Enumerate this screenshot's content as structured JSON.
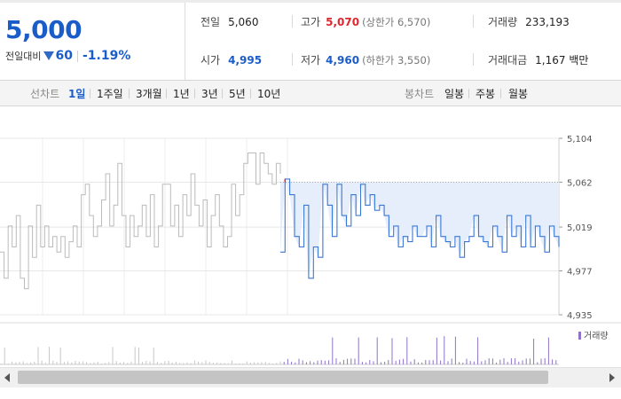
{
  "quote": {
    "price": "5,000",
    "change_label": "전일대비",
    "change_value": "60",
    "change_pct": "-1.19%",
    "colors": {
      "down": "#1a5dc9",
      "up": "#e0262d"
    }
  },
  "stats": {
    "prev_close": {
      "label": "전일",
      "value": "5,060"
    },
    "open": {
      "label": "시가",
      "value": "4,995"
    },
    "high": {
      "label": "고가",
      "value": "5,070",
      "sub": "(상한가 6,570)"
    },
    "low": {
      "label": "저가",
      "value": "4,960",
      "sub": "(하한가 3,550)"
    },
    "volume": {
      "label": "거래량",
      "value": "233,193"
    },
    "amount": {
      "label": "거래대금",
      "value": "1,167 백만"
    }
  },
  "toolbar": {
    "line_label": "선차트",
    "line_periods": [
      "1일",
      "1주일",
      "3개월",
      "1년",
      "3년",
      "5년",
      "10년"
    ],
    "candle_label": "봉차트",
    "candle_periods": [
      "일봉",
      "주봉",
      "월봉"
    ],
    "active": "1일"
  },
  "chart_data": {
    "type": "line",
    "y_ticks": [
      "5,104",
      "5,062",
      "5,019",
      "4,977",
      "4,935"
    ],
    "ylim": [
      4935,
      5104
    ],
    "prev_close_ref": 5062,
    "grid": true,
    "legend": {
      "label": "거래량",
      "placement": "top-right"
    },
    "series": [
      {
        "color": "#bbbbbb",
        "values": [
          4995,
          4970,
          5020,
          5000,
          5030,
          4970,
          4960,
          5020,
          4990,
          5040,
          5000,
          5020,
          5000,
          5010,
          4995,
          5010,
          4990,
          5005,
          5020,
          5000,
          5050,
          5060,
          5030,
          5010,
          5020,
          5045,
          5070,
          5020,
          5040,
          5080,
          5030,
          5000,
          5030,
          5010,
          5020,
          5040,
          5010,
          5050,
          5000,
          5020,
          5060,
          5060,
          5020,
          5040,
          5010,
          5050,
          5030,
          5070,
          5040,
          5020,
          5045,
          5000,
          5030,
          5050,
          5020,
          5000,
          5010,
          5060,
          5030,
          5050,
          5080,
          5090,
          5090,
          5060,
          5090,
          5080,
          5070,
          5060,
          5080,
          5070
        ]
      },
      {
        "color": "#3a78d6",
        "fill": "#e6eefb",
        "values": [
          4995,
          5065,
          5050,
          5010,
          5000,
          5040,
          4970,
          5000,
          4990,
          5060,
          5040,
          5010,
          5060,
          5030,
          5020,
          5050,
          5030,
          5060,
          5040,
          5050,
          5035,
          5040,
          5030,
          5010,
          5020,
          5000,
          5010,
          5005,
          5020,
          5010,
          5010,
          5020,
          5000,
          5030,
          5010,
          5005,
          5000,
          5010,
          4990,
          5005,
          5010,
          5030,
          5010,
          5005,
          5000,
          5020,
          5010,
          4995,
          5030,
          5010,
          5020,
          5000,
          5030,
          5000,
          5020,
          5010,
          4995,
          5020,
          5010,
          5000
        ]
      }
    ]
  }
}
